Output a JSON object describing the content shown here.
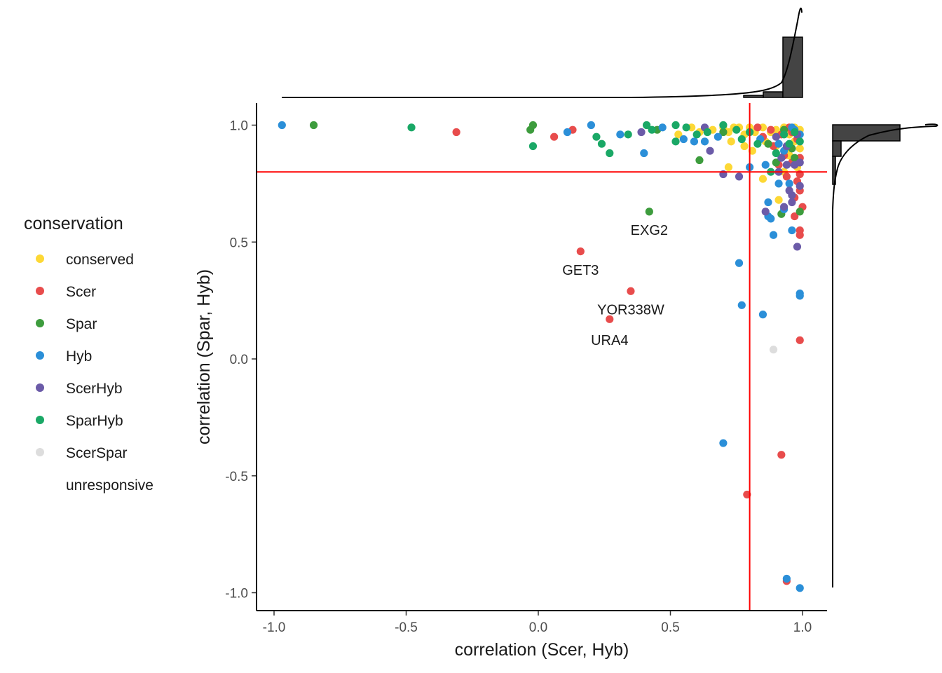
{
  "chart_data": {
    "type": "scatter",
    "xlabel": "correlation (Scer, Hyb)",
    "ylabel": "correlation (Spar, Hyb)",
    "xlim": [
      -1.05,
      1.09
    ],
    "ylim": [
      -1.08,
      1.1
    ],
    "x_ticks": [
      "-1.0",
      "-0.5",
      "0.0",
      "0.5",
      "1.0"
    ],
    "y_ticks": [
      "-1.0",
      "-0.5",
      "0.0",
      "0.5",
      "1.0"
    ],
    "reference_lines": {
      "x": 0.8,
      "y": 0.8,
      "color": "#ff0000"
    },
    "marginal_plots": "histogram with density curve (top for x, right for y)",
    "legend": {
      "title": "conservation",
      "placement": "left",
      "entries": [
        {
          "name": "conserved",
          "color": "#fdd835"
        },
        {
          "name": "Scer",
          "color": "#e84c4c"
        },
        {
          "name": "Spar",
          "color": "#3d9c3d"
        },
        {
          "name": "Hyb",
          "color": "#2b8fd8"
        },
        {
          "name": "ScerHyb",
          "color": "#6b5ba8"
        },
        {
          "name": "SparHyb",
          "color": "#1aa866"
        },
        {
          "name": "ScerSpar",
          "color": "#dddddd"
        },
        {
          "name": "unresponsive",
          "color": "#ffffff"
        }
      ]
    },
    "annotations": [
      {
        "text": "EXG2",
        "x": 0.42,
        "y": 0.53
      },
      {
        "text": "GET3",
        "x": 0.16,
        "y": 0.36
      },
      {
        "text": "YOR338W",
        "x": 0.35,
        "y": 0.19
      },
      {
        "text": "URA4",
        "x": 0.27,
        "y": 0.06
      }
    ],
    "series": [
      {
        "name": "conserved",
        "points": [
          [
            0.53,
            0.96
          ],
          [
            0.58,
            0.99
          ],
          [
            0.61,
            0.97
          ],
          [
            0.66,
            0.98
          ],
          [
            0.7,
            0.99
          ],
          [
            0.72,
            0.97
          ],
          [
            0.74,
            0.99
          ],
          [
            0.76,
            0.99
          ],
          [
            0.78,
            0.96
          ],
          [
            0.8,
            0.99
          ],
          [
            0.82,
            0.97
          ],
          [
            0.85,
            0.99
          ],
          [
            0.88,
            0.97
          ],
          [
            0.9,
            0.98
          ],
          [
            0.93,
            0.99
          ],
          [
            0.95,
            0.96
          ],
          [
            0.97,
            0.99
          ],
          [
            0.99,
            0.98
          ],
          [
            0.73,
            0.93
          ],
          [
            0.78,
            0.91
          ],
          [
            0.81,
            0.89
          ],
          [
            0.86,
            0.93
          ],
          [
            0.9,
            0.91
          ],
          [
            0.94,
            0.88
          ],
          [
            0.97,
            0.93
          ],
          [
            0.99,
            0.9
          ],
          [
            0.72,
            0.82
          ],
          [
            0.85,
            0.77
          ],
          [
            0.91,
            0.68
          ],
          [
            0.95,
            0.87
          ],
          [
            0.98,
            0.82
          ],
          [
            0.93,
            0.8
          ]
        ]
      },
      {
        "name": "Scer",
        "points": [
          [
            -0.31,
            0.97
          ],
          [
            0.06,
            0.95
          ],
          [
            0.13,
            0.98
          ],
          [
            0.16,
            0.46
          ],
          [
            0.35,
            0.29
          ],
          [
            0.27,
            0.17
          ],
          [
            0.79,
            -0.58
          ],
          [
            0.92,
            -0.41
          ],
          [
            0.94,
            -0.95
          ],
          [
            0.99,
            0.08
          ],
          [
            0.99,
            0.55
          ],
          [
            1.0,
            0.65
          ],
          [
            0.97,
            0.61
          ],
          [
            0.95,
            0.99
          ],
          [
            0.92,
            0.96
          ],
          [
            0.88,
            0.98
          ],
          [
            0.85,
            0.95
          ],
          [
            0.83,
            0.99
          ],
          [
            0.98,
            0.94
          ],
          [
            0.99,
            0.86
          ],
          [
            0.96,
            0.84
          ],
          [
            0.91,
            0.83
          ],
          [
            0.94,
            0.78
          ],
          [
            0.99,
            0.72
          ],
          [
            0.97,
            0.69
          ],
          [
            0.98,
            0.76
          ],
          [
            0.89,
            0.91
          ],
          [
            0.93,
            0.87
          ],
          [
            0.99,
            0.79
          ],
          [
            0.96,
            0.97
          ],
          [
            0.99,
            0.53
          ]
        ]
      },
      {
        "name": "Spar",
        "points": [
          [
            -0.85,
            1.0
          ],
          [
            -0.03,
            0.98
          ],
          [
            -0.02,
            1.0
          ],
          [
            0.42,
            0.63
          ],
          [
            0.45,
            0.98
          ],
          [
            0.61,
            0.85
          ],
          [
            0.7,
            0.97
          ],
          [
            0.87,
            0.92
          ],
          [
            0.92,
            0.62
          ],
          [
            0.99,
            0.63
          ],
          [
            0.96,
            0.9
          ],
          [
            0.9,
            0.84
          ],
          [
            0.93,
            0.98
          ],
          [
            0.97,
            0.86
          ]
        ]
      },
      {
        "name": "Hyb",
        "points": [
          [
            -0.97,
            1.0
          ],
          [
            0.11,
            0.97
          ],
          [
            0.2,
            1.0
          ],
          [
            0.31,
            0.96
          ],
          [
            0.4,
            0.88
          ],
          [
            0.47,
            0.99
          ],
          [
            0.55,
            0.94
          ],
          [
            0.59,
            0.93
          ],
          [
            0.63,
            0.93
          ],
          [
            0.68,
            0.95
          ],
          [
            0.76,
            0.41
          ],
          [
            0.77,
            0.23
          ],
          [
            0.85,
            0.19
          ],
          [
            0.7,
            -0.36
          ],
          [
            0.8,
            0.82
          ],
          [
            0.84,
            0.94
          ],
          [
            0.87,
            0.67
          ],
          [
            0.87,
            0.61
          ],
          [
            0.89,
            0.53
          ],
          [
            0.88,
            0.6
          ],
          [
            0.93,
            0.64
          ],
          [
            0.96,
            0.55
          ],
          [
            0.99,
            0.28
          ],
          [
            0.99,
            0.27
          ],
          [
            0.94,
            -0.94
          ],
          [
            0.99,
            -0.98
          ],
          [
            0.96,
            0.99
          ],
          [
            0.91,
            0.92
          ],
          [
            0.93,
            0.89
          ],
          [
            0.97,
            0.98
          ],
          [
            0.95,
            0.75
          ],
          [
            0.99,
            0.96
          ],
          [
            0.91,
            0.75
          ],
          [
            0.86,
            0.83
          ]
        ]
      },
      {
        "name": "ScerHyb",
        "points": [
          [
            0.39,
            0.97
          ],
          [
            0.63,
            0.99
          ],
          [
            0.65,
            0.89
          ],
          [
            0.7,
            0.79
          ],
          [
            0.76,
            0.78
          ],
          [
            0.86,
            0.63
          ],
          [
            0.93,
            0.65
          ],
          [
            0.98,
            0.48
          ],
          [
            0.96,
            0.7
          ],
          [
            0.97,
            0.83
          ],
          [
            0.94,
            0.91
          ],
          [
            0.99,
            0.84
          ],
          [
            0.91,
            0.8
          ],
          [
            0.98,
            0.96
          ],
          [
            0.95,
            0.72
          ],
          [
            0.92,
            0.86
          ],
          [
            0.99,
            0.74
          ],
          [
            0.96,
            0.67
          ],
          [
            0.9,
            0.95
          ],
          [
            0.94,
            0.83
          ]
        ]
      },
      {
        "name": "SparHyb",
        "points": [
          [
            -0.48,
            0.99
          ],
          [
            -0.02,
            0.91
          ],
          [
            0.22,
            0.95
          ],
          [
            0.24,
            0.92
          ],
          [
            0.27,
            0.88
          ],
          [
            0.34,
            0.96
          ],
          [
            0.41,
            1.0
          ],
          [
            0.43,
            0.98
          ],
          [
            0.52,
            0.93
          ],
          [
            0.52,
            1.0
          ],
          [
            0.56,
            0.99
          ],
          [
            0.6,
            0.96
          ],
          [
            0.64,
            0.97
          ],
          [
            0.7,
            1.0
          ],
          [
            0.75,
            0.98
          ],
          [
            0.77,
            0.94
          ],
          [
            0.8,
            0.97
          ],
          [
            0.83,
            0.92
          ],
          [
            0.88,
            0.8
          ],
          [
            0.9,
            0.88
          ],
          [
            0.93,
            0.96
          ],
          [
            0.95,
            0.92
          ],
          [
            0.97,
            0.97
          ],
          [
            0.99,
            0.93
          ]
        ]
      },
      {
        "name": "ScerSpar",
        "points": [
          [
            0.89,
            0.04
          ]
        ]
      }
    ]
  }
}
